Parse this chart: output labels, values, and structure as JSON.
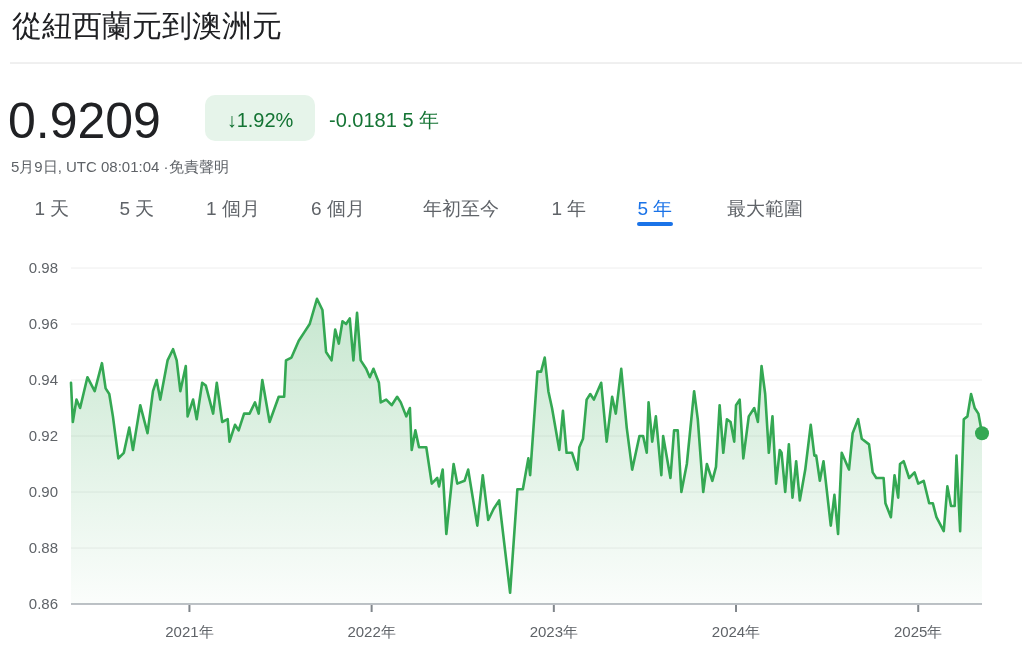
{
  "chart_data": {
    "type": "area",
    "title": "從紐西蘭元到澳洲元",
    "subtitle": "0.9209",
    "annotations": [
      "↓1.92%",
      "-0.0181 5 年",
      "5月9日, UTC 08:01:04 ·免責聲明",
      "1 天",
      "5 天",
      "1 個月",
      "6 個月",
      "年初至今",
      "1 年",
      "5 年",
      "最大範圍"
    ],
    "xlim": [
      2020.35,
      2025.35
    ],
    "xticks": [
      {
        "value": 2021,
        "label": "2021年"
      },
      {
        "value": 2022,
        "label": "2022年"
      },
      {
        "value": 2023,
        "label": "2023年"
      },
      {
        "value": 2024,
        "label": "2024年"
      },
      {
        "value": 2025,
        "label": "2025年"
      }
    ],
    "ylim": [
      0.86,
      0.98
    ],
    "yticks": [
      0.86,
      0.88,
      {
        "value": 0.9,
        "label": "0.90"
      },
      0.92,
      0.94,
      0.96,
      0.98
    ],
    "grid": "y",
    "series": [
      {
        "color": "#34a853",
        "x": [
          2020.35,
          2020.36,
          2020.38,
          2020.4,
          2020.44,
          2020.48,
          2020.52,
          2020.54,
          2020.56,
          2020.58,
          2020.61,
          2020.64,
          2020.67,
          2020.69,
          2020.73,
          2020.77,
          2020.8,
          2020.82,
          2020.84,
          2020.88,
          2020.91,
          2020.93,
          2020.95,
          2020.98,
          2020.99,
          2021.02,
          2021.04,
          2021.07,
          2021.09,
          2021.13,
          2021.15,
          2021.18,
          2021.21,
          2021.22,
          2021.25,
          2021.27,
          2021.3,
          2021.33,
          2021.36,
          2021.38,
          2021.4,
          2021.44,
          2021.49,
          2021.52,
          2021.53,
          2021.56,
          2021.6,
          2021.63,
          2021.66,
          2021.7,
          2021.73,
          2021.75,
          2021.78,
          2021.8,
          2021.82,
          2021.84,
          2021.86,
          2021.88,
          2021.9,
          2021.92,
          2021.94,
          2021.97,
          2021.99,
          2022.01,
          2022.04,
          2022.05,
          2022.08,
          2022.11,
          2022.14,
          2022.16,
          2022.19,
          2022.21,
          2022.22,
          2022.24,
          2022.26,
          2022.3,
          2022.33,
          2022.36,
          2022.37,
          2022.39,
          2022.41,
          2022.45,
          2022.47,
          2022.51,
          2022.53,
          2022.58,
          2022.61,
          2022.64,
          2022.67,
          2022.7,
          2022.76,
          2022.8,
          2022.83,
          2022.86,
          2022.87,
          2022.91,
          2022.93,
          2022.95,
          2022.97,
          2022.99,
          2023.03,
          2023.05,
          2023.07,
          2023.1,
          2023.13,
          2023.14,
          2023.16,
          2023.18,
          2023.2,
          2023.22,
          2023.26,
          2023.29,
          2023.32,
          2023.34,
          2023.37,
          2023.4,
          2023.43,
          2023.47,
          2023.49,
          2023.51,
          2023.52,
          2023.54,
          2023.56,
          2023.59,
          2023.6,
          2023.64,
          2023.66,
          2023.68,
          2023.7,
          2023.73,
          2023.77,
          2023.79,
          2023.82,
          2023.84,
          2023.87,
          2023.89,
          2023.91,
          2023.93,
          2023.95,
          2023.97,
          2023.99,
          2024.0,
          2024.02,
          2024.04,
          2024.07,
          2024.1,
          2024.12,
          2024.14,
          2024.16,
          2024.18,
          2024.2,
          2024.22,
          2024.24,
          2024.25,
          2024.27,
          2024.29,
          2024.31,
          2024.33,
          2024.35,
          2024.38,
          2024.41,
          2024.43,
          2024.44,
          2024.46,
          2024.48,
          2024.52,
          2024.54,
          2024.56,
          2024.58,
          2024.62,
          2024.64,
          2024.67,
          2024.69,
          2024.73,
          2024.75,
          2024.77,
          2024.81,
          2024.82,
          2024.85,
          2024.87,
          2024.89,
          2024.9,
          2024.92,
          2024.95,
          2024.98,
          2025.0,
          2025.03,
          2025.06,
          2025.08,
          2025.1,
          2025.14,
          2025.16,
          2025.18,
          2025.2,
          2025.21,
          2025.23,
          2025.25,
          2025.27,
          2025.29,
          2025.31,
          2025.33,
          2025.35
        ],
        "values": [
          0.939,
          0.925,
          0.933,
          0.93,
          0.941,
          0.936,
          0.946,
          0.937,
          0.935,
          0.927,
          0.912,
          0.914,
          0.923,
          0.915,
          0.931,
          0.921,
          0.936,
          0.94,
          0.933,
          0.947,
          0.951,
          0.947,
          0.936,
          0.945,
          0.927,
          0.933,
          0.926,
          0.939,
          0.938,
          0.928,
          0.939,
          0.925,
          0.926,
          0.918,
          0.924,
          0.922,
          0.928,
          0.928,
          0.932,
          0.928,
          0.94,
          0.925,
          0.934,
          0.934,
          0.947,
          0.948,
          0.954,
          0.957,
          0.96,
          0.969,
          0.965,
          0.95,
          0.947,
          0.958,
          0.953,
          0.961,
          0.96,
          0.962,
          0.947,
          0.964,
          0.947,
          0.944,
          0.941,
          0.944,
          0.939,
          0.932,
          0.933,
          0.931,
          0.934,
          0.932,
          0.927,
          0.93,
          0.915,
          0.922,
          0.916,
          0.916,
          0.903,
          0.905,
          0.902,
          0.908,
          0.885,
          0.91,
          0.903,
          0.904,
          0.908,
          0.888,
          0.906,
          0.89,
          0.894,
          0.897,
          0.864,
          0.901,
          0.901,
          0.912,
          0.906,
          0.943,
          0.943,
          0.948,
          0.936,
          0.93,
          0.915,
          0.929,
          0.914,
          0.914,
          0.908,
          0.916,
          0.919,
          0.933,
          0.935,
          0.933,
          0.939,
          0.918,
          0.934,
          0.928,
          0.944,
          0.923,
          0.908,
          0.92,
          0.92,
          0.914,
          0.932,
          0.918,
          0.927,
          0.906,
          0.92,
          0.905,
          0.922,
          0.922,
          0.9,
          0.91,
          0.936,
          0.926,
          0.9,
          0.91,
          0.904,
          0.909,
          0.931,
          0.914,
          0.926,
          0.925,
          0.918,
          0.931,
          0.933,
          0.912,
          0.927,
          0.93,
          0.925,
          0.945,
          0.935,
          0.914,
          0.927,
          0.903,
          0.915,
          0.914,
          0.9,
          0.917,
          0.898,
          0.911,
          0.897,
          0.908,
          0.924,
          0.913,
          0.913,
          0.904,
          0.911,
          0.888,
          0.899,
          0.885,
          0.914,
          0.908,
          0.921,
          0.926,
          0.919,
          0.917,
          0.907,
          0.905,
          0.905,
          0.896,
          0.891,
          0.906,
          0.898,
          0.91,
          0.911,
          0.905,
          0.907,
          0.903,
          0.904,
          0.896,
          0.896,
          0.891,
          0.886,
          0.902,
          0.895,
          0.895,
          0.913,
          0.886,
          0.926,
          0.927,
          0.935,
          0.93,
          0.928,
          0.921
        ]
      }
    ]
  }
}
